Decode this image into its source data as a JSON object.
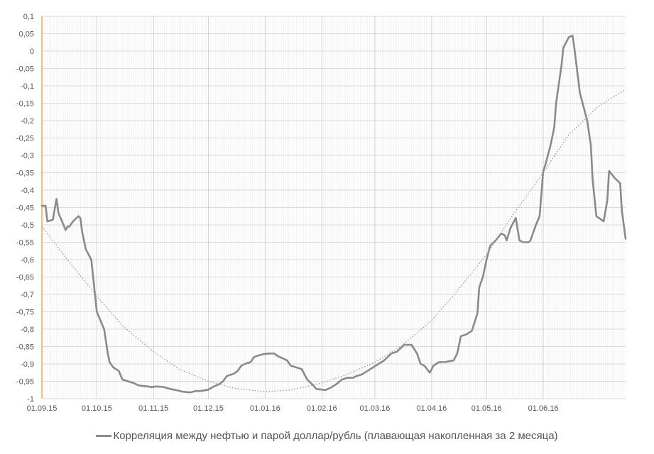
{
  "chart_data": {
    "type": "line",
    "title": "",
    "xlabel": "",
    "ylabel": "",
    "ylim": [
      -1,
      0.1
    ],
    "y_ticks": [
      "0,1",
      "0,05",
      "0",
      "-0,05",
      "-0,1",
      "-0,15",
      "-0,2",
      "-0,25",
      "-0,3",
      "-0,35",
      "-0,4",
      "-0,45",
      "-0,5",
      "-0,55",
      "-0,6",
      "-0,65",
      "-0,7",
      "-0,75",
      "-0,8",
      "-0,85",
      "-0,9",
      "-0,95",
      "-1"
    ],
    "x_ticks": [
      "01.09.15",
      "01.10.15",
      "01.11.15",
      "01.12.15",
      "01.01.16",
      "01.02.16",
      "01.03.16",
      "01.04.16",
      "01.05.16",
      "01.06.16"
    ],
    "legend_position": "bottom",
    "grid": true,
    "series": [
      {
        "name": "Корреляция между нефтью и парой доллар/рубль (плавающая накопленная за 2 месяца)",
        "color": "#8a8a8a",
        "points": [
          [
            "2015-09-01",
            -0.445
          ],
          [
            "2015-09-03",
            -0.445
          ],
          [
            "2015-09-04",
            -0.49
          ],
          [
            "2015-09-07",
            -0.485
          ],
          [
            "2015-09-08",
            -0.455
          ],
          [
            "2015-09-09",
            -0.425
          ],
          [
            "2015-09-10",
            -0.465
          ],
          [
            "2015-09-14",
            -0.515
          ],
          [
            "2015-09-15",
            -0.505
          ],
          [
            "2015-09-16",
            -0.505
          ],
          [
            "2015-09-18",
            -0.49
          ],
          [
            "2015-09-21",
            -0.475
          ],
          [
            "2015-09-22",
            -0.48
          ],
          [
            "2015-09-23",
            -0.52
          ],
          [
            "2015-09-25",
            -0.57
          ],
          [
            "2015-09-28",
            -0.6
          ],
          [
            "2015-09-30",
            -0.7
          ],
          [
            "2015-10-01",
            -0.75
          ],
          [
            "2015-10-05",
            -0.8
          ],
          [
            "2015-10-07",
            -0.87
          ],
          [
            "2015-10-08",
            -0.895
          ],
          [
            "2015-10-10",
            -0.91
          ],
          [
            "2015-10-13",
            -0.92
          ],
          [
            "2015-10-15",
            -0.945
          ],
          [
            "2015-10-18",
            -0.95
          ],
          [
            "2015-10-21",
            -0.955
          ],
          [
            "2015-10-24",
            -0.962
          ],
          [
            "2015-10-29",
            -0.965
          ],
          [
            "2015-10-31",
            -0.967
          ],
          [
            "2015-11-02",
            -0.965
          ],
          [
            "2015-11-06",
            -0.966
          ],
          [
            "2015-11-10",
            -0.972
          ],
          [
            "2015-11-14",
            -0.976
          ],
          [
            "2015-11-17",
            -0.98
          ],
          [
            "2015-11-21",
            -0.982
          ],
          [
            "2015-11-24",
            -0.978
          ],
          [
            "2015-11-27",
            -0.978
          ],
          [
            "2015-12-01",
            -0.974
          ],
          [
            "2015-12-04",
            -0.965
          ],
          [
            "2015-12-07",
            -0.958
          ],
          [
            "2015-12-09",
            -0.95
          ],
          [
            "2015-12-11",
            -0.935
          ],
          [
            "2015-12-15",
            -0.928
          ],
          [
            "2015-12-17",
            -0.92
          ],
          [
            "2015-12-19",
            -0.905
          ],
          [
            "2015-12-21",
            -0.9
          ],
          [
            "2015-12-24",
            -0.895
          ],
          [
            "2015-12-26",
            -0.88
          ],
          [
            "2015-12-29",
            -0.875
          ],
          [
            "2015-12-31",
            -0.872
          ],
          [
            "2016-01-03",
            -0.87
          ],
          [
            "2016-01-06",
            -0.87
          ],
          [
            "2016-01-08",
            -0.878
          ],
          [
            "2016-01-11",
            -0.885
          ],
          [
            "2016-01-13",
            -0.89
          ],
          [
            "2016-01-15",
            -0.905
          ],
          [
            "2016-01-18",
            -0.91
          ],
          [
            "2016-01-21",
            -0.915
          ],
          [
            "2016-01-24",
            -0.945
          ],
          [
            "2016-01-27",
            -0.96
          ],
          [
            "2016-01-29",
            -0.972
          ],
          [
            "2016-02-03",
            -0.975
          ],
          [
            "2016-02-06",
            -0.968
          ],
          [
            "2016-02-09",
            -0.958
          ],
          [
            "2016-02-12",
            -0.945
          ],
          [
            "2016-02-15",
            -0.94
          ],
          [
            "2016-02-18",
            -0.94
          ],
          [
            "2016-02-20",
            -0.935
          ],
          [
            "2016-02-23",
            -0.93
          ],
          [
            "2016-02-26",
            -0.92
          ],
          [
            "2016-02-29",
            -0.91
          ],
          [
            "2016-03-03",
            -0.9
          ],
          [
            "2016-03-06",
            -0.89
          ],
          [
            "2016-03-08",
            -0.88
          ],
          [
            "2016-03-10",
            -0.87
          ],
          [
            "2016-03-13",
            -0.865
          ],
          [
            "2016-03-15",
            -0.855
          ],
          [
            "2016-03-17",
            -0.845
          ],
          [
            "2016-03-21",
            -0.845
          ],
          [
            "2016-03-24",
            -0.87
          ],
          [
            "2016-03-26",
            -0.9
          ],
          [
            "2016-03-28",
            -0.905
          ],
          [
            "2016-03-31",
            -0.925
          ],
          [
            "2016-04-02",
            -0.905
          ],
          [
            "2016-04-05",
            -0.895
          ],
          [
            "2016-04-08",
            -0.895
          ],
          [
            "2016-04-13",
            -0.89
          ],
          [
            "2016-04-15",
            -0.87
          ],
          [
            "2016-04-17",
            -0.82
          ],
          [
            "2016-04-20",
            -0.815
          ],
          [
            "2016-04-23",
            -0.805
          ],
          [
            "2016-04-26",
            -0.755
          ],
          [
            "2016-04-27",
            -0.68
          ],
          [
            "2016-04-29",
            -0.65
          ],
          [
            "2016-05-01",
            -0.6
          ],
          [
            "2016-05-03",
            -0.56
          ],
          [
            "2016-05-06",
            -0.545
          ],
          [
            "2016-05-09",
            -0.525
          ],
          [
            "2016-05-11",
            -0.53
          ],
          [
            "2016-05-12",
            -0.545
          ],
          [
            "2016-05-14",
            -0.51
          ],
          [
            "2016-05-17",
            -0.48
          ],
          [
            "2016-05-19",
            -0.545
          ],
          [
            "2016-05-21",
            -0.55
          ],
          [
            "2016-05-24",
            -0.55
          ],
          [
            "2016-05-25",
            -0.545
          ],
          [
            "2016-05-28",
            -0.5
          ],
          [
            "2016-05-30",
            -0.475
          ],
          [
            "2016-06-01",
            -0.345
          ],
          [
            "2016-06-02",
            -0.33
          ],
          [
            "2016-06-05",
            -0.27
          ],
          [
            "2016-06-07",
            -0.22
          ],
          [
            "2016-06-08",
            -0.15
          ],
          [
            "2016-06-11",
            -0.04
          ],
          [
            "2016-06-12",
            0.01
          ],
          [
            "2016-06-15",
            0.04
          ],
          [
            "2016-06-17",
            0.045
          ],
          [
            "2016-06-18",
            0.01
          ],
          [
            "2016-06-21",
            -0.12
          ],
          [
            "2016-06-25",
            -0.2
          ],
          [
            "2016-06-27",
            -0.27
          ],
          [
            "2016-06-28",
            -0.37
          ],
          [
            "2016-06-30",
            -0.475
          ],
          [
            "2016-07-04",
            -0.49
          ],
          [
            "2016-07-06",
            -0.43
          ],
          [
            "2016-07-07",
            -0.345
          ],
          [
            "2016-07-10",
            -0.365
          ],
          [
            "2016-07-13",
            -0.38
          ],
          [
            "2016-07-14",
            -0.46
          ],
          [
            "2016-07-16",
            -0.54
          ]
        ]
      },
      {
        "name": "",
        "role": "trend",
        "style": "dotted",
        "color": "#999999",
        "points": [
          [
            "2015-09-01",
            -0.505
          ],
          [
            "2015-09-15",
            -0.6
          ],
          [
            "2015-10-01",
            -0.705
          ],
          [
            "2015-10-15",
            -0.79
          ],
          [
            "2015-11-01",
            -0.865
          ],
          [
            "2015-11-15",
            -0.915
          ],
          [
            "2015-12-01",
            -0.95
          ],
          [
            "2015-12-15",
            -0.97
          ],
          [
            "2016-01-01",
            -0.98
          ],
          [
            "2016-01-15",
            -0.975
          ],
          [
            "2016-02-01",
            -0.955
          ],
          [
            "2016-02-15",
            -0.93
          ],
          [
            "2016-03-01",
            -0.895
          ],
          [
            "2016-03-15",
            -0.85
          ],
          [
            "2016-04-01",
            -0.775
          ],
          [
            "2016-04-15",
            -0.69
          ],
          [
            "2016-05-01",
            -0.585
          ],
          [
            "2016-05-15",
            -0.475
          ],
          [
            "2016-06-01",
            -0.35
          ],
          [
            "2016-06-15",
            -0.24
          ],
          [
            "2016-07-01",
            -0.16
          ],
          [
            "2016-07-16",
            -0.11
          ]
        ]
      }
    ]
  }
}
